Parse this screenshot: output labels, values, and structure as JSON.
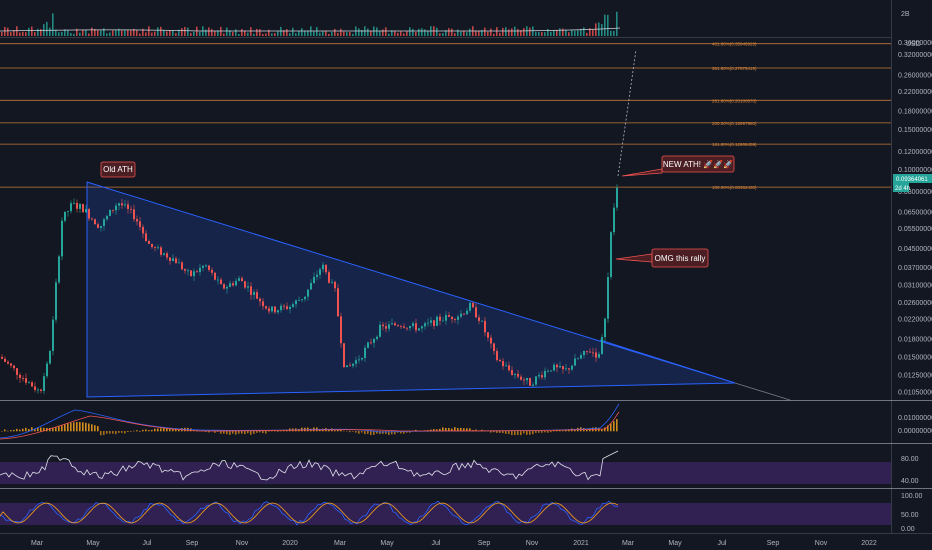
{
  "chart_data": {
    "type": "candlestick",
    "title": "",
    "currency": "USD",
    "volume_label": "2B",
    "time_axis": [
      "Mar",
      "May",
      "Jul",
      "Sep",
      "Nov",
      "2020",
      "Mar",
      "May",
      "Jul",
      "Sep",
      "Nov",
      "2021",
      "Mar",
      "May",
      "Jul",
      "Sep",
      "Nov",
      "2022"
    ],
    "price_axis": [
      "0.36000000",
      "0.32000000",
      "0.26000000",
      "0.22000000",
      "0.18000000",
      "0.15000000",
      "0.12000000",
      "0.10000000",
      "0.08000000",
      "0.06500000",
      "0.05500000",
      "0.04500000",
      "0.03700000",
      "0.03100000",
      "0.02600000",
      "0.02200000",
      "0.01800000",
      "0.01500000",
      "0.01250000",
      "0.01050000"
    ],
    "price_ylim": [
      0.0098,
      0.37
    ],
    "scale": "log",
    "last_price": "0.09364061",
    "countdown": "2d 4h",
    "fib_levels": [
      {
        "label": "100.00%(0.08352430)",
        "price": 0.08352
      },
      {
        "label": "161.80%(0.12908459)",
        "price": 0.12908
      },
      {
        "label": "200.00%(0.15997980)",
        "price": 0.15998
      },
      {
        "label": "261.80%(0.20100570)",
        "price": 0.20101
      },
      {
        "label": "361.80%(0.27879419)",
        "price": 0.27879
      },
      {
        "label": "461.80%(0.35649929)",
        "price": 0.3565
      }
    ],
    "annotations": [
      {
        "text": "Old ATH"
      },
      {
        "text": "NEW ATH! 🚀🚀🚀"
      },
      {
        "text": "OMG this rally"
      }
    ],
    "macd_axis": [
      "0.01000000",
      "0.00000000"
    ],
    "rsi_axis": [
      "80.00",
      "40.00"
    ],
    "stoch_axis": [
      "100.00",
      "50.00",
      "0.00"
    ],
    "colors": {
      "background": "#131722",
      "up": "#26a69a",
      "down": "#ef5350",
      "triangle": "#2962ff",
      "fib": "#e08a3c",
      "rsi_band": "#4a2a7a"
    }
  }
}
